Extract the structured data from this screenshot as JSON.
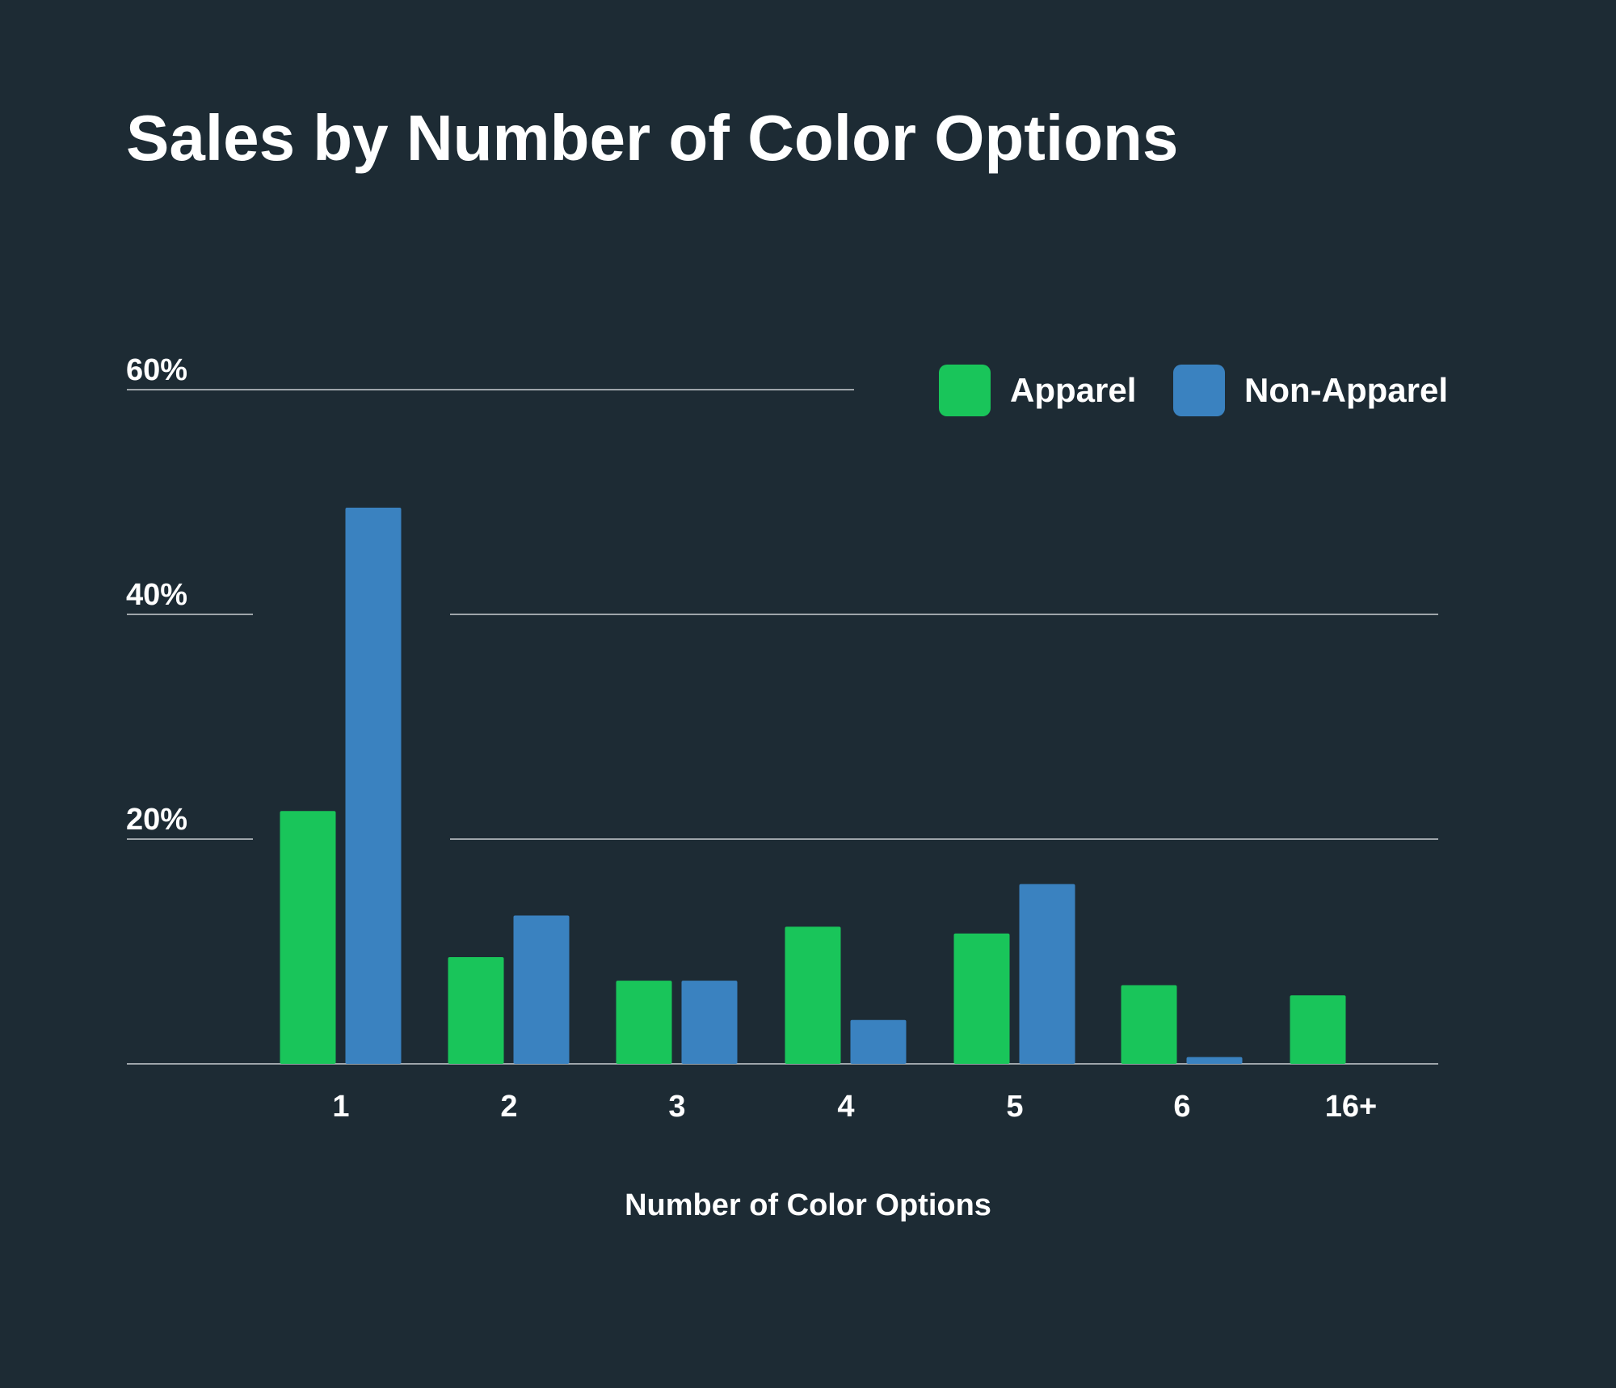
{
  "chart_data": {
    "type": "bar",
    "title": "Sales by Number of Color Options",
    "xlabel": "Number of Color Options",
    "ylabel": "",
    "categories": [
      "1",
      "2",
      "3",
      "4",
      "5",
      "6",
      "16+"
    ],
    "series": [
      {
        "name": "Apparel",
        "color": "#19c55a",
        "values": [
          22.5,
          9.5,
          7.4,
          12.2,
          11.6,
          7.0,
          6.1
        ]
      },
      {
        "name": "Non-Apparel",
        "color": "#3a82c0",
        "values": [
          49.5,
          13.2,
          7.4,
          3.9,
          16.0,
          0.6,
          null
        ]
      }
    ],
    "ylim": [
      0,
      60
    ],
    "yticks": [
      20,
      40,
      60
    ],
    "ytick_labels": [
      "20%",
      "40%",
      "60%"
    ],
    "grid": true,
    "legend_position": "top-right"
  }
}
